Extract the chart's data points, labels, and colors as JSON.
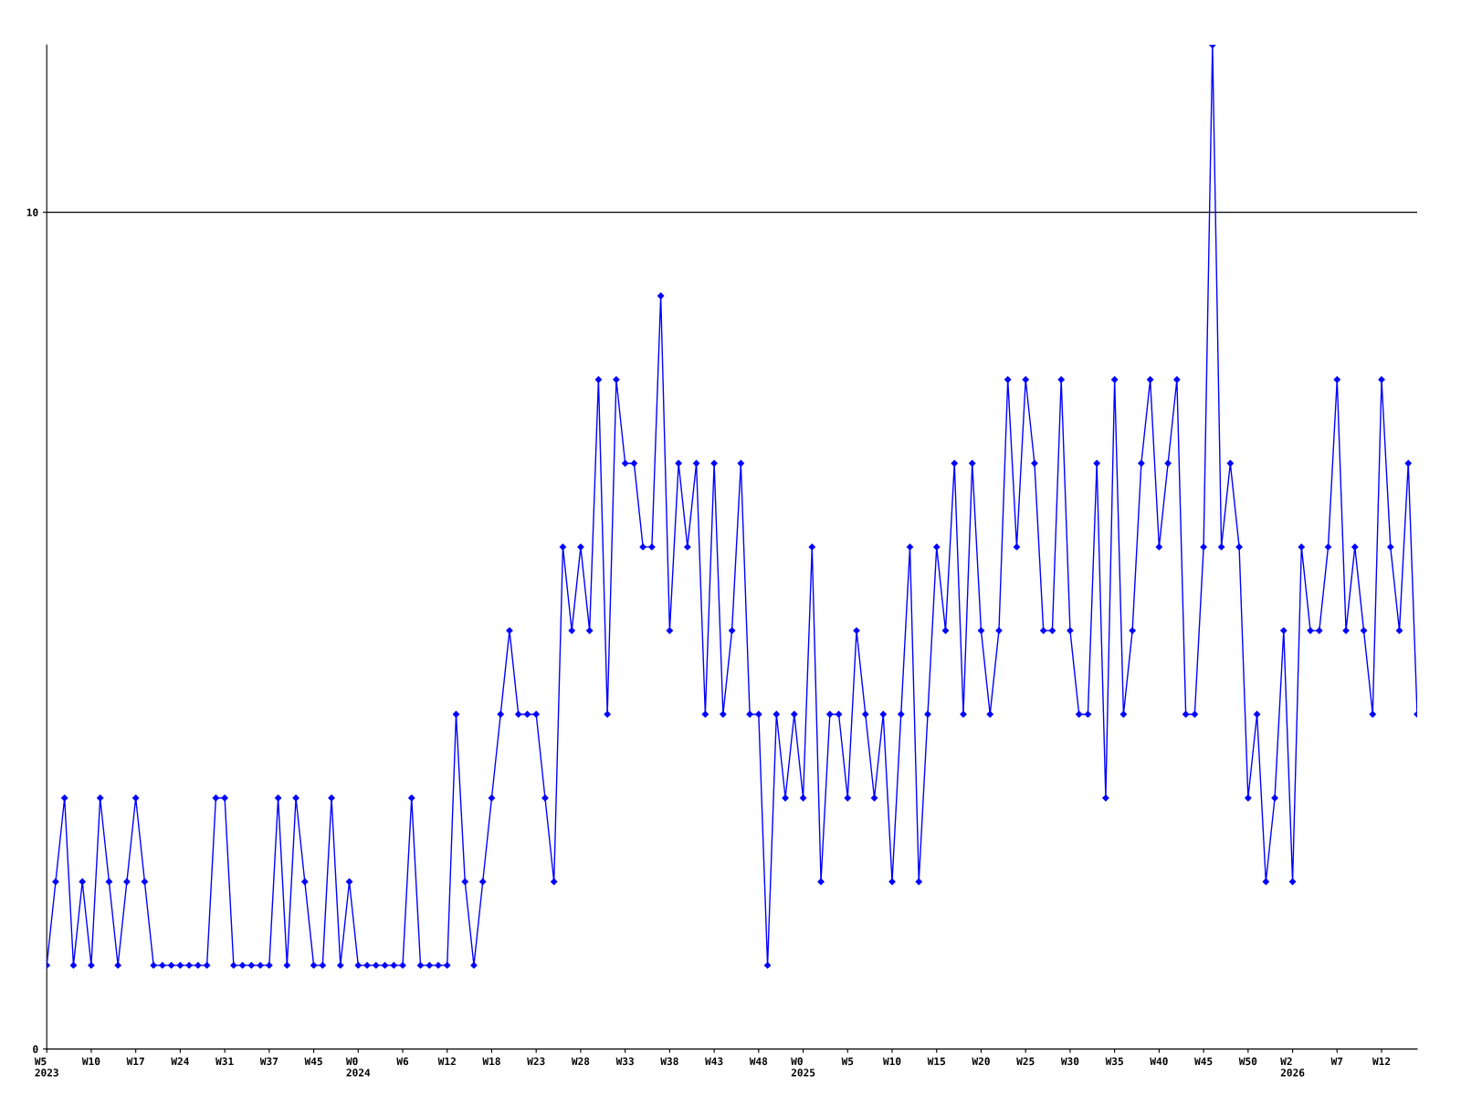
{
  "chart_data": {
    "type": "line",
    "categories": [
      "W5\n2023",
      null,
      null,
      null,
      null,
      "W10",
      null,
      null,
      null,
      null,
      "W17",
      null,
      null,
      null,
      null,
      "W24",
      null,
      null,
      null,
      null,
      "W31",
      null,
      null,
      null,
      null,
      "W37",
      null,
      null,
      null,
      null,
      "W45",
      null,
      null,
      null,
      null,
      "W0\n2024",
      null,
      null,
      null,
      null,
      "W6",
      null,
      null,
      null,
      null,
      "W12",
      null,
      null,
      null,
      null,
      "W18",
      null,
      null,
      null,
      null,
      "W23",
      null,
      null,
      null,
      null,
      "W28",
      null,
      null,
      null,
      null,
      "W33",
      null,
      null,
      null,
      null,
      "W38",
      null,
      null,
      null,
      null,
      "W43",
      null,
      null,
      null,
      null,
      "W48",
      null,
      null,
      null,
      null,
      "W0\n2025",
      null,
      null,
      null,
      null,
      "W5",
      null,
      null,
      null,
      null,
      "W10",
      null,
      null,
      null,
      null,
      "W15",
      null,
      null,
      null,
      null,
      "W20",
      null,
      null,
      null,
      null,
      "W25",
      null,
      null,
      null,
      null,
      "W30",
      null,
      null,
      null,
      null,
      "W35",
      null,
      null,
      null,
      null,
      "W40",
      null,
      null,
      null,
      null,
      "W45",
      null,
      null,
      null,
      null,
      "W50",
      null,
      null,
      null,
      null,
      "W2\n2026",
      null,
      null,
      null,
      null,
      "W7",
      null,
      null,
      null,
      null,
      "W12",
      null,
      null,
      null,
      null
    ],
    "series": [
      {
        "color": "#0000ff",
        "values": [
          1,
          2,
          3,
          1,
          2,
          1,
          3,
          2,
          1,
          2,
          3,
          2,
          1,
          1,
          1,
          1,
          1,
          1,
          1,
          3,
          3,
          1,
          1,
          1,
          1,
          1,
          3,
          1,
          3,
          2,
          1,
          1,
          3,
          1,
          2,
          1,
          1,
          1,
          1,
          1,
          1,
          3,
          1,
          1,
          1,
          1,
          4,
          2,
          1,
          2,
          3,
          4,
          5,
          4,
          4,
          4,
          3,
          2,
          6,
          5,
          6,
          5,
          8,
          4,
          8,
          7,
          7,
          6,
          6,
          9,
          5,
          7,
          6,
          7,
          4,
          7,
          4,
          5,
          7,
          4,
          4,
          1,
          4,
          3,
          4,
          3,
          6,
          2,
          4,
          4,
          3,
          5,
          4,
          3,
          4,
          2,
          4,
          6,
          2,
          4,
          6,
          5,
          7,
          4,
          7,
          5,
          4,
          5,
          8,
          6,
          8,
          7,
          5,
          5,
          8,
          5,
          4,
          4,
          7,
          3,
          8,
          4,
          5,
          7,
          8,
          6,
          7,
          8,
          4,
          4,
          6,
          12,
          6,
          7,
          6,
          3,
          4,
          2,
          3,
          5,
          2,
          6,
          5,
          5,
          6,
          8,
          5,
          6,
          5,
          4,
          8,
          6,
          5,
          7,
          4
        ]
      }
    ],
    "ylim": [
      0,
      12
    ],
    "yticks": [
      0,
      10
    ],
    "grid": "y",
    "marker": "diamond",
    "line_style": "solid"
  }
}
